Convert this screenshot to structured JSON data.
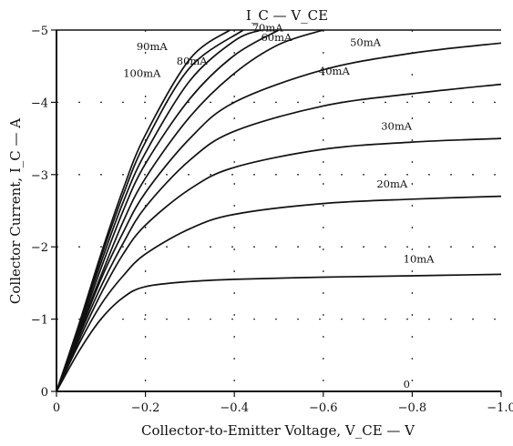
{
  "chart_data": {
    "type": "line",
    "title": "I_C — V_CE",
    "xlabel": "Collector-to-Emitter Voltage, V_CE — V",
    "ylabel": "Collector Current, I_C — A",
    "xlim": [
      0,
      1.0
    ],
    "ylim": [
      0,
      5
    ],
    "x_ticks": [
      {
        "value": 0,
        "label": "0"
      },
      {
        "value": 0.2,
        "label": "−0.2"
      },
      {
        "value": 0.4,
        "label": "−0.4"
      },
      {
        "value": 0.6,
        "label": "−0.6"
      },
      {
        "value": 0.8,
        "label": "−0.8"
      },
      {
        "value": 1.0,
        "label": "−1.0"
      }
    ],
    "y_ticks": [
      {
        "value": 0,
        "label": "0"
      },
      {
        "value": 1,
        "label": "−1"
      },
      {
        "value": 2,
        "label": "−2"
      },
      {
        "value": 3,
        "label": "−3"
      },
      {
        "value": 4,
        "label": "−4"
      },
      {
        "value": 5,
        "label": "−5"
      }
    ],
    "grid": "dotted",
    "series": [
      {
        "name": "0",
        "x": [
          0,
          1.0
        ],
        "y": [
          0,
          0
        ],
        "label_at": [
          0.78,
          0.05
        ]
      },
      {
        "name": "10mA",
        "x": [
          0,
          0.05,
          0.1,
          0.15,
          0.2,
          0.3,
          0.4,
          0.6,
          0.8,
          1.0
        ],
        "y": [
          0,
          0.55,
          1.0,
          1.3,
          1.45,
          1.52,
          1.55,
          1.58,
          1.6,
          1.62
        ],
        "label_at": [
          0.78,
          1.78
        ]
      },
      {
        "name": "20mA",
        "x": [
          0,
          0.05,
          0.1,
          0.15,
          0.2,
          0.3,
          0.4,
          0.6,
          0.8,
          1.0
        ],
        "y": [
          0,
          0.65,
          1.2,
          1.6,
          1.9,
          2.25,
          2.45,
          2.6,
          2.66,
          2.7
        ],
        "label_at": [
          0.72,
          2.82
        ]
      },
      {
        "name": "30mA",
        "x": [
          0,
          0.05,
          0.1,
          0.15,
          0.2,
          0.3,
          0.4,
          0.6,
          0.8,
          1.0
        ],
        "y": [
          0,
          0.7,
          1.35,
          1.9,
          2.3,
          2.8,
          3.1,
          3.35,
          3.45,
          3.5
        ],
        "label_at": [
          0.73,
          3.62
        ]
      },
      {
        "name": "40mA",
        "x": [
          0,
          0.05,
          0.1,
          0.15,
          0.2,
          0.3,
          0.4,
          0.6,
          0.8,
          1.0
        ],
        "y": [
          0,
          0.75,
          1.45,
          2.05,
          2.55,
          3.2,
          3.6,
          3.95,
          4.12,
          4.25
        ],
        "label_at": [
          0.59,
          4.38
        ]
      },
      {
        "name": "50mA",
        "x": [
          0,
          0.05,
          0.1,
          0.15,
          0.2,
          0.3,
          0.4,
          0.6,
          0.8,
          1.0
        ],
        "y": [
          0,
          0.78,
          1.55,
          2.2,
          2.75,
          3.5,
          4.0,
          4.45,
          4.68,
          4.82
        ],
        "label_at": [
          0.66,
          4.78
        ]
      },
      {
        "name": "60mA",
        "x": [
          0,
          0.05,
          0.1,
          0.15,
          0.2,
          0.3,
          0.4,
          0.5,
          0.6
        ],
        "y": [
          0,
          0.82,
          1.6,
          2.35,
          2.95,
          3.8,
          4.4,
          4.8,
          5.0
        ],
        "label_at": [
          0.46,
          4.85
        ]
      },
      {
        "name": "70mA",
        "x": [
          0,
          0.05,
          0.1,
          0.15,
          0.2,
          0.3,
          0.4,
          0.5
        ],
        "y": [
          0,
          0.85,
          1.7,
          2.5,
          3.15,
          4.05,
          4.65,
          5.0
        ],
        "label_at": [
          0.44,
          4.98
        ]
      },
      {
        "name": "80mA",
        "x": [
          0,
          0.05,
          0.1,
          0.15,
          0.2,
          0.3,
          0.4,
          0.46
        ],
        "y": [
          0,
          0.88,
          1.78,
          2.62,
          3.3,
          4.3,
          4.85,
          5.0
        ],
        "label_at": [
          0.27,
          4.52
        ]
      },
      {
        "name": "90mA",
        "x": [
          0,
          0.05,
          0.1,
          0.15,
          0.2,
          0.3,
          0.42
        ],
        "y": [
          0,
          0.9,
          1.85,
          2.72,
          3.45,
          4.48,
          5.0
        ],
        "label_at": [
          0.18,
          4.72
        ]
      },
      {
        "name": "100mA",
        "x": [
          0,
          0.05,
          0.1,
          0.15,
          0.2,
          0.3,
          0.39
        ],
        "y": [
          0,
          0.92,
          1.9,
          2.8,
          3.55,
          4.6,
          5.0
        ],
        "label_at": [
          0.15,
          4.35
        ]
      }
    ],
    "series_labels": [
      "0",
      "10mA",
      "20mA",
      "30mA",
      "40mA",
      "50mA",
      "60mA",
      "70mA",
      "80mA",
      "90mA",
      "100mA"
    ]
  }
}
